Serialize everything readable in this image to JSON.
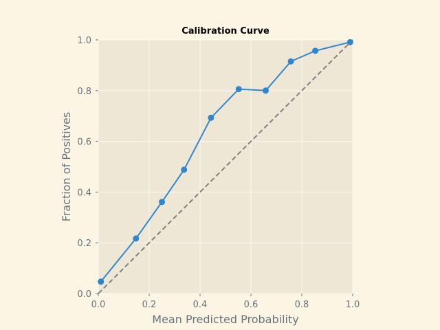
{
  "chart_data": {
    "type": "line",
    "title": "Calibration Curve",
    "xlabel": "Mean Predicted Probability",
    "ylabel": "Fraction of Positives",
    "xlim": [
      0.0,
      1.0
    ],
    "ylim": [
      0.0,
      1.0
    ],
    "xticks": [
      "0.0",
      "0.2",
      "0.4",
      "0.6",
      "0.8",
      "1.0"
    ],
    "yticks": [
      "0.0",
      "0.2",
      "0.4",
      "0.6",
      "0.8",
      "1.0"
    ],
    "grid": true,
    "legend": "none",
    "series": [
      {
        "x": [
          0.01,
          0.148,
          0.25,
          0.337,
          0.443,
          0.552,
          0.658,
          0.757,
          0.853,
          0.99
        ],
        "y": [
          0.047,
          0.217,
          0.361,
          0.488,
          0.693,
          0.806,
          0.8,
          0.915,
          0.957,
          0.991
        ],
        "color": "#2e86cf",
        "style": "solid",
        "markers": true
      },
      {
        "x": [
          0.0,
          1.0
        ],
        "y": [
          0.0,
          1.0
        ],
        "color": "#808080",
        "style": "dashed",
        "markers": false
      }
    ],
    "colors": {
      "figure_bg": "#fdf5e4",
      "plot_bg": "#efe7d6",
      "grid": "#fbf8f2",
      "text": "#66737d"
    }
  }
}
